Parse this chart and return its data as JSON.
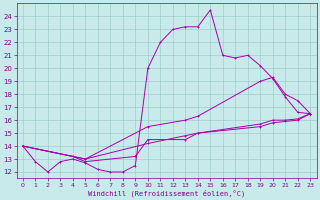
{
  "title": "",
  "xlabel": "Windchill (Refroidissement éolien,°C)",
  "bg_color": "#c8eaea",
  "grid_color": "#a0cccc",
  "line_color": "#aa00aa",
  "xlim": [
    -0.5,
    23.5
  ],
  "ylim": [
    11.5,
    25.0
  ],
  "xticks": [
    0,
    1,
    2,
    3,
    4,
    5,
    6,
    7,
    8,
    9,
    10,
    11,
    12,
    13,
    14,
    15,
    16,
    17,
    18,
    19,
    20,
    21,
    22,
    23
  ],
  "yticks": [
    12,
    13,
    14,
    15,
    16,
    17,
    18,
    19,
    20,
    21,
    22,
    23,
    24
  ],
  "series1": [
    [
      0,
      14.0
    ],
    [
      1,
      12.8
    ],
    [
      2,
      12.0
    ],
    [
      3,
      12.8
    ],
    [
      4,
      13.0
    ],
    [
      5,
      12.7
    ],
    [
      6,
      12.2
    ],
    [
      7,
      12.0
    ],
    [
      8,
      12.0
    ],
    [
      9,
      12.5
    ],
    [
      10,
      20.0
    ],
    [
      11,
      22.0
    ],
    [
      12,
      23.0
    ],
    [
      13,
      23.2
    ],
    [
      14,
      23.2
    ],
    [
      15,
      24.5
    ],
    [
      16,
      21.0
    ],
    [
      17,
      20.8
    ],
    [
      18,
      21.0
    ],
    [
      19,
      20.2
    ],
    [
      20,
      19.2
    ],
    [
      21,
      17.8
    ],
    [
      22,
      16.6
    ],
    [
      23,
      16.5
    ]
  ],
  "series2": [
    [
      0,
      14.0
    ],
    [
      5,
      13.0
    ],
    [
      10,
      15.5
    ],
    [
      13,
      16.0
    ],
    [
      14,
      16.3
    ],
    [
      19,
      19.0
    ],
    [
      20,
      19.3
    ],
    [
      21,
      18.0
    ],
    [
      22,
      17.5
    ],
    [
      23,
      16.5
    ]
  ],
  "series3": [
    [
      0,
      14.0
    ],
    [
      5,
      13.0
    ],
    [
      10,
      14.2
    ],
    [
      13,
      14.8
    ],
    [
      14,
      15.0
    ],
    [
      19,
      15.7
    ],
    [
      20,
      16.0
    ],
    [
      21,
      16.0
    ],
    [
      22,
      16.1
    ],
    [
      23,
      16.5
    ]
  ],
  "series4": [
    [
      0,
      14.0
    ],
    [
      4,
      13.2
    ],
    [
      5,
      12.8
    ],
    [
      9,
      13.2
    ],
    [
      10,
      14.5
    ],
    [
      13,
      14.5
    ],
    [
      14,
      15.0
    ],
    [
      19,
      15.5
    ],
    [
      20,
      15.8
    ],
    [
      21,
      15.9
    ],
    [
      22,
      16.0
    ],
    [
      23,
      16.5
    ]
  ]
}
